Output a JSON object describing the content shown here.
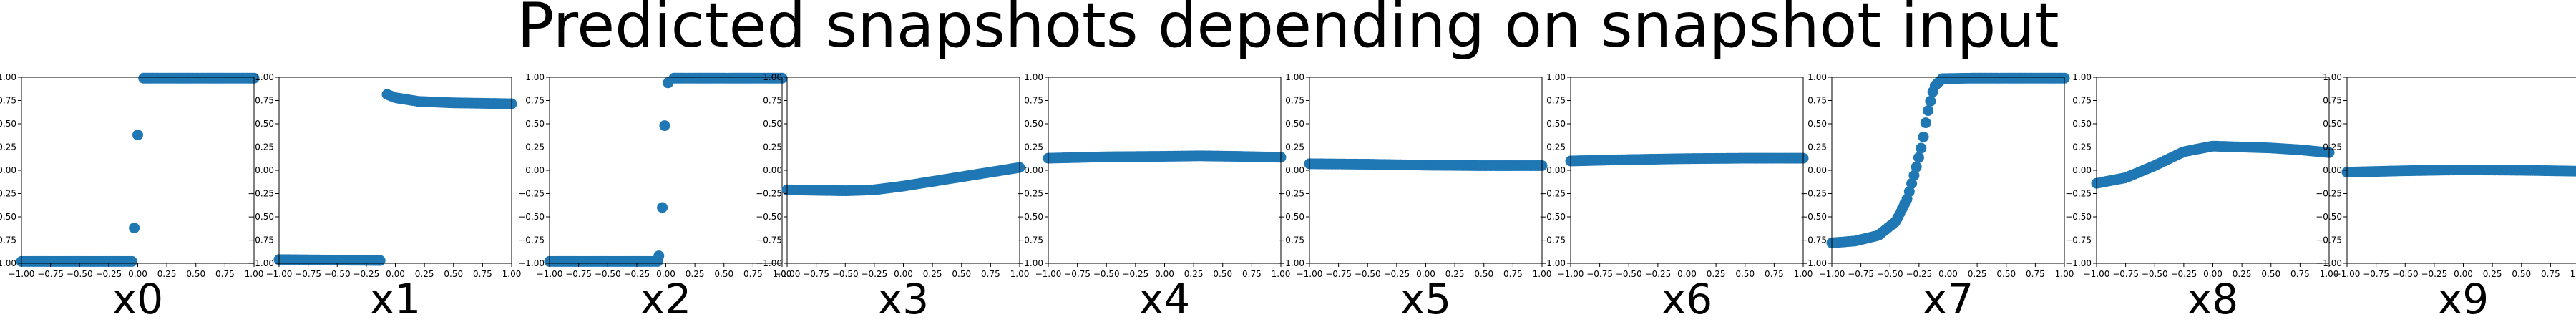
{
  "figure": {
    "title": "Predicted snapshots depending on snapshot input"
  },
  "colors": {
    "marker": "#1f77b4",
    "axes": "#000000",
    "background": "#ffffff"
  },
  "chart_data": [
    {
      "type": "scatter",
      "xlabel": "x0",
      "xlim": [
        -1,
        1
      ],
      "ylim": [
        -1,
        1
      ],
      "xticks": [
        "−1.00",
        "−0.75",
        "−0.50",
        "−0.25",
        "0.00",
        "0.25",
        "0.50",
        "0.75",
        "1.00"
      ],
      "yticks": [
        "−1.00",
        "−0.75",
        "−0.50",
        "−0.25",
        "0.00",
        "0.25",
        "0.50",
        "0.75",
        "1.00"
      ],
      "curve": {
        "kind": "step",
        "low": -0.98,
        "high": 0.99,
        "gap_from": -0.04,
        "gap_to": 0.04
      },
      "extra_points": [
        [
          -0.03,
          -0.62
        ],
        [
          0.0,
          0.38
        ]
      ]
    },
    {
      "type": "scatter",
      "xlabel": "x1",
      "xlim": [
        -1,
        1
      ],
      "ylim": [
        -1,
        1
      ],
      "xticks": [
        "−1.00",
        "−0.75",
        "−0.50",
        "−0.25",
        "0.00",
        "0.25",
        "0.50",
        "0.75",
        "1.00"
      ],
      "yticks": [
        "−1.00",
        "−0.75",
        "−0.50",
        "−0.25",
        "0.00",
        "0.25",
        "0.50",
        "0.75",
        "1.00"
      ],
      "curve": {
        "kind": "piecewise",
        "segments": [
          {
            "from": -1.0,
            "to": -0.12,
            "points": [
              [
                -1.0,
                -0.96
              ],
              [
                -0.12,
                -0.97
              ]
            ]
          },
          {
            "from": -0.08,
            "to": 1.0,
            "points": [
              [
                -0.08,
                0.82
              ],
              [
                0.0,
                0.78
              ],
              [
                0.2,
                0.74
              ],
              [
                0.5,
                0.725
              ],
              [
                1.0,
                0.715
              ]
            ]
          }
        ]
      },
      "extra_points": []
    },
    {
      "type": "scatter",
      "xlabel": "x2",
      "xlim": [
        -1,
        1
      ],
      "ylim": [
        -1,
        1
      ],
      "xticks": [
        "−1.00",
        "−0.75",
        "−0.50",
        "−0.25",
        "0.00",
        "0.25",
        "0.50",
        "0.75",
        "1.00"
      ],
      "yticks": [
        "−1.00",
        "−0.75",
        "−0.50",
        "−0.25",
        "0.00",
        "0.25",
        "0.50",
        "0.75",
        "1.00"
      ],
      "curve": {
        "kind": "step",
        "low": -0.98,
        "high": 0.99,
        "gap_from": -0.06,
        "gap_to": 0.06
      },
      "extra_points": [
        [
          -0.06,
          -0.92
        ],
        [
          -0.03,
          -0.4
        ],
        [
          -0.01,
          0.48
        ],
        [
          0.02,
          0.94
        ]
      ]
    },
    {
      "type": "scatter",
      "xlabel": "x3",
      "xlim": [
        -1,
        1
      ],
      "ylim": [
        -1,
        1
      ],
      "xticks": [
        "−1.00",
        "−0.75",
        "−0.50",
        "−0.25",
        "0.00",
        "0.25",
        "0.50",
        "0.75",
        "1.00"
      ],
      "yticks": [
        "−1.00",
        "−0.75",
        "−0.50",
        "−0.25",
        "0.00",
        "0.25",
        "0.50",
        "0.75",
        "1.00"
      ],
      "curve": {
        "kind": "smooth",
        "points": [
          [
            -1.0,
            -0.21
          ],
          [
            -0.5,
            -0.22
          ],
          [
            -0.25,
            -0.21
          ],
          [
            0.0,
            -0.17
          ],
          [
            0.5,
            -0.07
          ],
          [
            1.0,
            0.03
          ]
        ]
      },
      "extra_points": []
    },
    {
      "type": "scatter",
      "xlabel": "x4",
      "xlim": [
        -1,
        1
      ],
      "ylim": [
        -1,
        1
      ],
      "xticks": [
        "−1.00",
        "−0.75",
        "−0.50",
        "−0.25",
        "0.00",
        "0.25",
        "0.50",
        "0.75",
        "1.00"
      ],
      "yticks": [
        "−1.00",
        "−0.75",
        "−0.50",
        "−0.25",
        "0.00",
        "0.25",
        "0.50",
        "0.75",
        "1.00"
      ],
      "curve": {
        "kind": "smooth",
        "points": [
          [
            -1.0,
            0.13
          ],
          [
            -0.5,
            0.145
          ],
          [
            0.0,
            0.15
          ],
          [
            0.3,
            0.155
          ],
          [
            0.6,
            0.15
          ],
          [
            1.0,
            0.14
          ]
        ]
      },
      "extra_points": []
    },
    {
      "type": "scatter",
      "xlabel": "x5",
      "xlim": [
        -1,
        1
      ],
      "ylim": [
        -1,
        1
      ],
      "xticks": [
        "−1.00",
        "−0.75",
        "−0.50",
        "−0.25",
        "0.00",
        "0.25",
        "0.50",
        "0.75",
        "1.00"
      ],
      "yticks": [
        "−1.00",
        "−0.75",
        "−0.50",
        "−0.25",
        "0.00",
        "0.25",
        "0.50",
        "0.75",
        "1.00"
      ],
      "curve": {
        "kind": "smooth",
        "points": [
          [
            -1.0,
            0.07
          ],
          [
            -0.5,
            0.065
          ],
          [
            0.0,
            0.055
          ],
          [
            0.5,
            0.05
          ],
          [
            1.0,
            0.05
          ]
        ]
      },
      "extra_points": []
    },
    {
      "type": "scatter",
      "xlabel": "x6",
      "xlim": [
        -1,
        1
      ],
      "ylim": [
        -1,
        1
      ],
      "xticks": [
        "−1.00",
        "−0.75",
        "−0.50",
        "−0.25",
        "0.00",
        "0.25",
        "0.50",
        "0.75",
        "1.00"
      ],
      "yticks": [
        "−1.00",
        "−0.75",
        "−0.50",
        "−0.25",
        "0.00",
        "0.25",
        "0.50",
        "0.75",
        "1.00"
      ],
      "curve": {
        "kind": "smooth",
        "points": [
          [
            -1.0,
            0.1
          ],
          [
            -0.5,
            0.115
          ],
          [
            0.0,
            0.125
          ],
          [
            0.5,
            0.13
          ],
          [
            1.0,
            0.13
          ]
        ]
      },
      "extra_points": []
    },
    {
      "type": "scatter",
      "xlabel": "x7",
      "xlim": [
        -1,
        1
      ],
      "ylim": [
        -1,
        1
      ],
      "xticks": [
        "−1.00",
        "−0.75",
        "−0.50",
        "−0.25",
        "0.00",
        "0.25",
        "0.50",
        "0.75",
        "1.00"
      ],
      "yticks": [
        "−1.00",
        "−0.75",
        "−0.50",
        "−0.25",
        "0.00",
        "0.25",
        "0.50",
        "0.75",
        "1.00"
      ],
      "curve": {
        "kind": "smooth",
        "points": [
          [
            -1.0,
            -0.78
          ],
          [
            -0.8,
            -0.76
          ],
          [
            -0.6,
            -0.7
          ],
          [
            -0.45,
            -0.55
          ],
          [
            -0.35,
            -0.3
          ],
          [
            -0.28,
            0.0
          ],
          [
            -0.22,
            0.3
          ],
          [
            -0.18,
            0.6
          ],
          [
            -0.12,
            0.9
          ],
          [
            -0.05,
            0.985
          ],
          [
            0.2,
            0.99
          ],
          [
            1.0,
            0.99
          ]
        ]
      },
      "extra_points": []
    },
    {
      "type": "scatter",
      "xlabel": "x8",
      "xlim": [
        -1,
        1
      ],
      "ylim": [
        -1,
        1
      ],
      "xticks": [
        "−1.00",
        "−0.75",
        "−0.50",
        "−0.25",
        "0.00",
        "0.25",
        "0.50",
        "0.75",
        "1.00"
      ],
      "yticks": [
        "−1.00",
        "−0.75",
        "−0.50",
        "−0.25",
        "0.00",
        "0.25",
        "0.50",
        "0.75",
        "1.00"
      ],
      "curve": {
        "kind": "smooth",
        "points": [
          [
            -1.0,
            -0.14
          ],
          [
            -0.75,
            -0.08
          ],
          [
            -0.5,
            0.05
          ],
          [
            -0.25,
            0.2
          ],
          [
            0.0,
            0.26
          ],
          [
            0.25,
            0.25
          ],
          [
            0.5,
            0.24
          ],
          [
            0.75,
            0.22
          ],
          [
            1.0,
            0.19
          ]
        ]
      },
      "extra_points": []
    },
    {
      "type": "scatter",
      "xlabel": "x9",
      "xlim": [
        -1,
        1
      ],
      "ylim": [
        -1,
        1
      ],
      "xticks": [
        "−1.00",
        "−0.75",
        "−0.50",
        "−0.25",
        "0.00",
        "0.25",
        "0.50",
        "0.75",
        "1.00"
      ],
      "yticks": [
        "−1.00",
        "−0.75",
        "−0.50",
        "−0.25",
        "0.00",
        "0.25",
        "0.50",
        "0.75",
        "1.00"
      ],
      "curve": {
        "kind": "smooth",
        "points": [
          [
            -1.0,
            -0.02
          ],
          [
            -0.5,
            -0.005
          ],
          [
            0.0,
            0.005
          ],
          [
            0.5,
            0.0
          ],
          [
            1.0,
            -0.01
          ]
        ]
      },
      "extra_points": []
    }
  ]
}
